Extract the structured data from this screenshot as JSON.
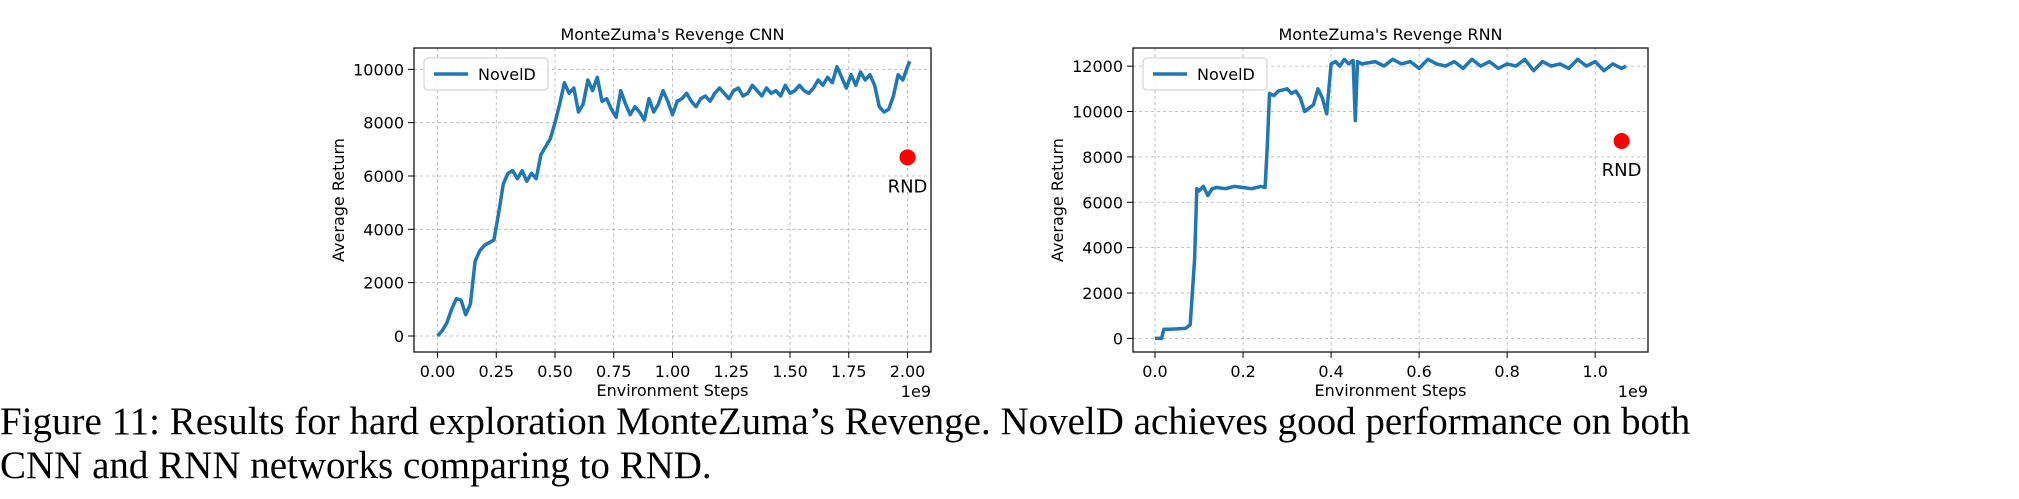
{
  "chart_data": [
    {
      "type": "line",
      "title": "MonteZuma's Revenge CNN",
      "xlabel": "Environment Steps",
      "ylabel": "Average Return",
      "x_offset_label": "1e9",
      "xlim": [
        -0.1,
        2.1
      ],
      "ylim": [
        -600,
        10800
      ],
      "xticks": [
        0.0,
        0.25,
        0.5,
        0.75,
        1.0,
        1.25,
        1.5,
        1.75,
        2.0
      ],
      "xtick_labels": [
        "0.00",
        "0.25",
        "0.50",
        "0.75",
        "1.00",
        "1.25",
        "1.50",
        "1.75",
        "2.00"
      ],
      "yticks": [
        0,
        2000,
        4000,
        6000,
        8000,
        10000
      ],
      "ytick_labels": [
        "0",
        "2000",
        "4000",
        "6000",
        "8000",
        "10000"
      ],
      "grid": true,
      "legend": "top-left",
      "series": [
        {
          "name": "NovelD",
          "color": "#1f77b4",
          "x": [
            0.0,
            0.02,
            0.04,
            0.06,
            0.08,
            0.1,
            0.12,
            0.14,
            0.16,
            0.18,
            0.2,
            0.22,
            0.24,
            0.26,
            0.28,
            0.3,
            0.32,
            0.34,
            0.36,
            0.38,
            0.4,
            0.42,
            0.44,
            0.46,
            0.48,
            0.5,
            0.52,
            0.54,
            0.56,
            0.58,
            0.6,
            0.62,
            0.64,
            0.66,
            0.68,
            0.7,
            0.72,
            0.74,
            0.76,
            0.78,
            0.8,
            0.82,
            0.84,
            0.86,
            0.88,
            0.9,
            0.92,
            0.94,
            0.96,
            0.98,
            1.0,
            1.02,
            1.04,
            1.06,
            1.08,
            1.1,
            1.12,
            1.14,
            1.16,
            1.18,
            1.2,
            1.22,
            1.24,
            1.26,
            1.28,
            1.3,
            1.32,
            1.34,
            1.36,
            1.38,
            1.4,
            1.42,
            1.44,
            1.46,
            1.48,
            1.5,
            1.52,
            1.54,
            1.56,
            1.58,
            1.6,
            1.62,
            1.64,
            1.66,
            1.68,
            1.7,
            1.72,
            1.74,
            1.76,
            1.78,
            1.8,
            1.82,
            1.84,
            1.86,
            1.88,
            1.9,
            1.92,
            1.94,
            1.96,
            1.98,
            2.0,
            2.01
          ],
          "values": [
            0,
            200,
            500,
            1000,
            1400,
            1350,
            800,
            1200,
            2800,
            3200,
            3400,
            3500,
            3600,
            4600,
            5700,
            6100,
            6200,
            5900,
            6200,
            5800,
            6100,
            5900,
            6800,
            7100,
            7400,
            8000,
            8700,
            9500,
            9100,
            9300,
            8400,
            8700,
            9600,
            9200,
            9700,
            8800,
            8900,
            8500,
            8200,
            9200,
            8700,
            8300,
            8600,
            8400,
            8100,
            8900,
            8400,
            8700,
            9200,
            8800,
            8300,
            8800,
            8900,
            9100,
            8800,
            8600,
            8900,
            9000,
            8800,
            9100,
            9300,
            9100,
            8900,
            9200,
            9300,
            9000,
            9100,
            9400,
            9200,
            9000,
            9300,
            9100,
            9200,
            9000,
            9400,
            9100,
            9200,
            9400,
            9200,
            9100,
            9300,
            9600,
            9400,
            9700,
            9500,
            10100,
            9700,
            9300,
            9800,
            9400,
            9900,
            9600,
            9800,
            9400,
            8600,
            8400,
            8500,
            9000,
            9800,
            9600,
            10100,
            10300
          ]
        }
      ],
      "annotations": [
        {
          "label": "RND",
          "x": 2.0,
          "y": 6700,
          "color": "#ff0000"
        }
      ]
    },
    {
      "type": "line",
      "title": "MonteZuma's Revenge RNN",
      "xlabel": "Environment Steps",
      "ylabel": "Average Return",
      "x_offset_label": "1e9",
      "xlim": [
        -0.05,
        1.12
      ],
      "ylim": [
        -600,
        12800
      ],
      "xticks": [
        0.0,
        0.2,
        0.4,
        0.6,
        0.8,
        1.0
      ],
      "xtick_labels": [
        "0.0",
        "0.2",
        "0.4",
        "0.6",
        "0.8",
        "1.0"
      ],
      "yticks": [
        0,
        2000,
        4000,
        6000,
        8000,
        10000,
        12000
      ],
      "ytick_labels": [
        "0",
        "2000",
        "4000",
        "6000",
        "8000",
        "10000",
        "12000"
      ],
      "grid": true,
      "legend": "top-left",
      "series": [
        {
          "name": "NovelD",
          "color": "#1f77b4",
          "x": [
            0.0,
            0.015,
            0.02,
            0.03,
            0.05,
            0.07,
            0.08,
            0.09,
            0.095,
            0.1,
            0.11,
            0.12,
            0.13,
            0.14,
            0.16,
            0.18,
            0.2,
            0.22,
            0.24,
            0.25,
            0.255,
            0.26,
            0.27,
            0.28,
            0.3,
            0.31,
            0.32,
            0.33,
            0.34,
            0.36,
            0.37,
            0.38,
            0.39,
            0.4,
            0.41,
            0.42,
            0.43,
            0.44,
            0.45,
            0.455,
            0.46,
            0.47,
            0.5,
            0.52,
            0.54,
            0.56,
            0.58,
            0.6,
            0.62,
            0.64,
            0.66,
            0.68,
            0.7,
            0.72,
            0.74,
            0.76,
            0.78,
            0.8,
            0.82,
            0.84,
            0.86,
            0.88,
            0.9,
            0.92,
            0.94,
            0.96,
            0.98,
            1.0,
            1.02,
            1.04,
            1.06,
            1.07
          ],
          "values": [
            0,
            0,
            400,
            400,
            420,
            450,
            600,
            3500,
            6600,
            6500,
            6700,
            6300,
            6600,
            6650,
            6600,
            6700,
            6650,
            6600,
            6700,
            6650,
            8500,
            10800,
            10700,
            10900,
            11000,
            10800,
            10900,
            10600,
            10000,
            10300,
            11000,
            10600,
            9900,
            12100,
            12200,
            12000,
            12300,
            12100,
            12250,
            9600,
            12200,
            12100,
            12200,
            12000,
            12300,
            12100,
            12200,
            11900,
            12300,
            12100,
            12000,
            12200,
            11900,
            12300,
            12000,
            12200,
            11900,
            12100,
            12000,
            12300,
            11800,
            12200,
            12000,
            12100,
            11900,
            12300,
            12000,
            12200,
            11800,
            12100,
            11900,
            12000
          ]
        }
      ],
      "annotations": [
        {
          "label": "RND",
          "x": 1.06,
          "y": 8700,
          "color": "#ff0000"
        }
      ]
    }
  ],
  "caption": {
    "line1": "Figure 11: Results for hard exploration MonteZuma’s Revenge. NovelD achieves good performance on both",
    "line2": "CNN and RNN networks comparing to RND."
  }
}
